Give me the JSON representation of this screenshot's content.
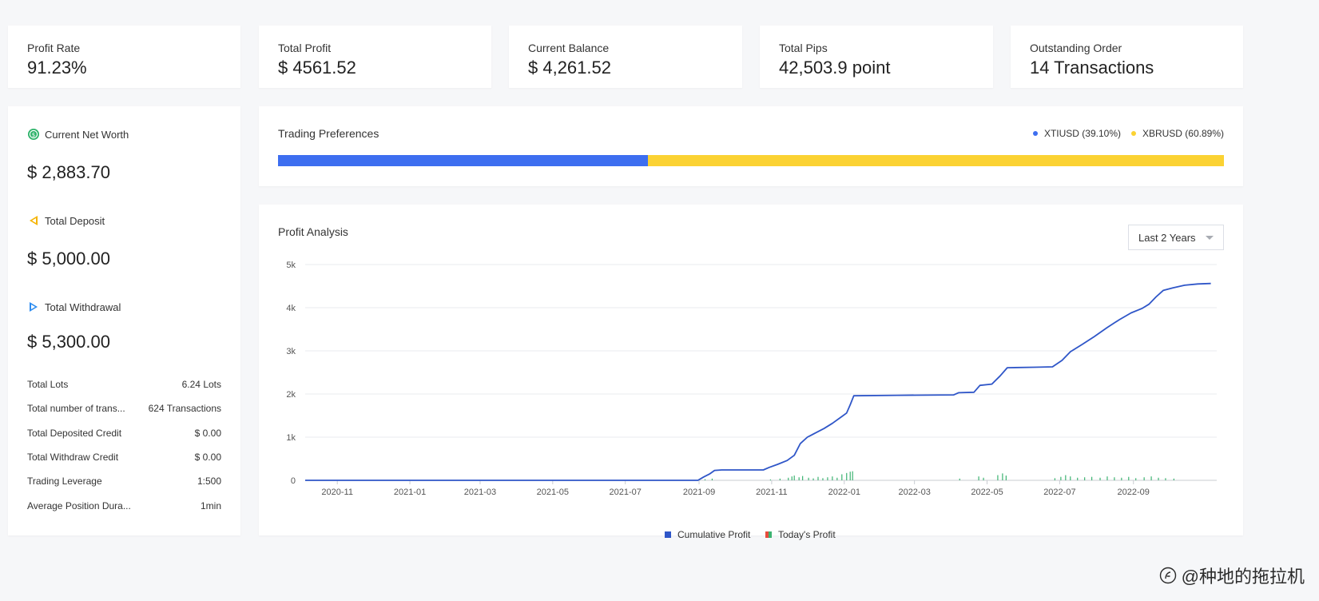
{
  "stats": [
    {
      "title": "Profit Rate",
      "value": "91.23%"
    },
    {
      "title": "Total Profit",
      "value": "$ 4561.52"
    },
    {
      "title": "Current Balance",
      "value": "$ 4,261.52"
    },
    {
      "title": "Total Pips",
      "value": "42,503.9 point"
    },
    {
      "title": "Outstanding Order",
      "value": "14 Transactions"
    }
  ],
  "sidebar": {
    "net_worth_label": "Current Net Worth",
    "net_worth_value": "$ 2,883.70",
    "deposit_label": "Total Deposit",
    "deposit_value": "$ 5,000.00",
    "withdrawal_label": "Total Withdrawal",
    "withdrawal_value": "$ 5,300.00",
    "details": [
      {
        "label": "Total Lots",
        "value": "6.24 Lots"
      },
      {
        "label": "Total number of trans...",
        "value": "624 Transactions"
      },
      {
        "label": "Total Deposited Credit",
        "value": "$ 0.00"
      },
      {
        "label": "Total Withdraw Credit",
        "value": "$ 0.00"
      },
      {
        "label": "Trading Leverage",
        "value": "1:500"
      },
      {
        "label": "Average Position Dura...",
        "value": "1min"
      }
    ],
    "icon_colors": {
      "net_worth": "#2fb36b",
      "deposit": "#f5b400",
      "withdrawal": "#2d8cf0"
    }
  },
  "preferences": {
    "title": "Trading Preferences",
    "items": [
      {
        "label": "XTIUSD (39.10%)",
        "share": 39.1,
        "color": "#3d6ef0"
      },
      {
        "label": "XBRUSD (60.89%)",
        "share": 60.89,
        "color": "#fbd233"
      }
    ]
  },
  "profit": {
    "title": "Profit Analysis",
    "range_label": "Last 2 Years",
    "legend": {
      "cumulative": "Cumulative Profit",
      "today": "Today's Profit"
    }
  },
  "colors": {
    "cumulative": "#2f56c8",
    "today_green": "#3cb371",
    "today_red": "#e84c3d",
    "grid": "#e9ebef"
  },
  "chart_data": {
    "type": "line",
    "x_tick_labels": [
      "2020-11",
      "2021-01",
      "2021-03",
      "2021-05",
      "2021-07",
      "2021-09",
      "2021-11",
      "2022-01",
      "2022-03",
      "2022-05",
      "2022-07",
      "2022-09"
    ],
    "y_tick_labels": [
      "0",
      "1k",
      "2k",
      "3k",
      "4k",
      "5k"
    ],
    "ylim": [
      0,
      5000
    ],
    "xlim": [
      "2020-10-05",
      "2022-11-10"
    ],
    "grid": true,
    "legend_position": "bottom-center",
    "series": [
      {
        "name": "Cumulative Profit",
        "points": [
          [
            "2020-10-05",
            0
          ],
          [
            "2021-08-31",
            0
          ],
          [
            "2021-09-05",
            80
          ],
          [
            "2021-09-10",
            150
          ],
          [
            "2021-09-14",
            230
          ],
          [
            "2021-09-20",
            240
          ],
          [
            "2021-10-25",
            240
          ],
          [
            "2021-10-30",
            300
          ],
          [
            "2021-11-06",
            370
          ],
          [
            "2021-11-14",
            460
          ],
          [
            "2021-11-20",
            580
          ],
          [
            "2021-11-25",
            850
          ],
          [
            "2021-12-01",
            1000
          ],
          [
            "2021-12-08",
            1100
          ],
          [
            "2021-12-15",
            1200
          ],
          [
            "2021-12-22",
            1320
          ],
          [
            "2021-12-30",
            1480
          ],
          [
            "2022-01-03",
            1560
          ],
          [
            "2022-01-06",
            1750
          ],
          [
            "2022-01-09",
            1960
          ],
          [
            "2022-02-15",
            1970
          ],
          [
            "2022-04-03",
            1980
          ],
          [
            "2022-04-07",
            2030
          ],
          [
            "2022-04-20",
            2040
          ],
          [
            "2022-04-25",
            2200
          ],
          [
            "2022-05-05",
            2230
          ],
          [
            "2022-05-12",
            2420
          ],
          [
            "2022-05-18",
            2610
          ],
          [
            "2022-06-10",
            2620
          ],
          [
            "2022-06-25",
            2630
          ],
          [
            "2022-07-03",
            2780
          ],
          [
            "2022-07-10",
            2980
          ],
          [
            "2022-07-20",
            3150
          ],
          [
            "2022-07-30",
            3330
          ],
          [
            "2022-08-10",
            3540
          ],
          [
            "2022-08-20",
            3720
          ],
          [
            "2022-08-30",
            3880
          ],
          [
            "2022-09-08",
            3980
          ],
          [
            "2022-09-14",
            4080
          ],
          [
            "2022-09-20",
            4250
          ],
          [
            "2022-09-26",
            4400
          ],
          [
            "2022-10-04",
            4460
          ],
          [
            "2022-10-14",
            4520
          ],
          [
            "2022-10-25",
            4550
          ],
          [
            "2022-11-05",
            4561.52
          ]
        ]
      },
      {
        "name": "Today's Profit",
        "type": "bar",
        "points": [
          [
            "2021-09-06",
            25
          ],
          [
            "2021-09-12",
            40
          ],
          [
            "2021-10-31",
            20
          ],
          [
            "2021-11-08",
            40
          ],
          [
            "2021-11-15",
            60
          ],
          [
            "2021-11-18",
            90
          ],
          [
            "2021-11-20",
            110
          ],
          [
            "2021-11-24",
            70
          ],
          [
            "2021-11-27",
            100
          ],
          [
            "2021-12-02",
            60
          ],
          [
            "2021-12-06",
            45
          ],
          [
            "2021-12-10",
            80
          ],
          [
            "2021-12-14",
            50
          ],
          [
            "2021-12-18",
            70
          ],
          [
            "2021-12-22",
            90
          ],
          [
            "2021-12-26",
            60
          ],
          [
            "2021-12-30",
            140
          ],
          [
            "2022-01-03",
            170
          ],
          [
            "2022-01-06",
            200
          ],
          [
            "2022-01-08",
            210
          ],
          [
            "2022-04-08",
            40
          ],
          [
            "2022-04-24",
            90
          ],
          [
            "2022-04-28",
            60
          ],
          [
            "2022-05-10",
            120
          ],
          [
            "2022-05-14",
            160
          ],
          [
            "2022-05-17",
            110
          ],
          [
            "2022-06-27",
            50
          ],
          [
            "2022-07-02",
            80
          ],
          [
            "2022-07-06",
            120
          ],
          [
            "2022-07-10",
            90
          ],
          [
            "2022-07-16",
            60
          ],
          [
            "2022-07-22",
            70
          ],
          [
            "2022-07-28",
            80
          ],
          [
            "2022-08-04",
            60
          ],
          [
            "2022-08-10",
            90
          ],
          [
            "2022-08-16",
            70
          ],
          [
            "2022-08-22",
            60
          ],
          [
            "2022-08-28",
            80
          ],
          [
            "2022-09-03",
            50
          ],
          [
            "2022-09-10",
            70
          ],
          [
            "2022-09-16",
            90
          ],
          [
            "2022-09-22",
            60
          ],
          [
            "2022-09-28",
            50
          ],
          [
            "2022-10-05",
            40
          ]
        ]
      }
    ]
  },
  "watermark": {
    "text": "@种地的拖拉机"
  }
}
